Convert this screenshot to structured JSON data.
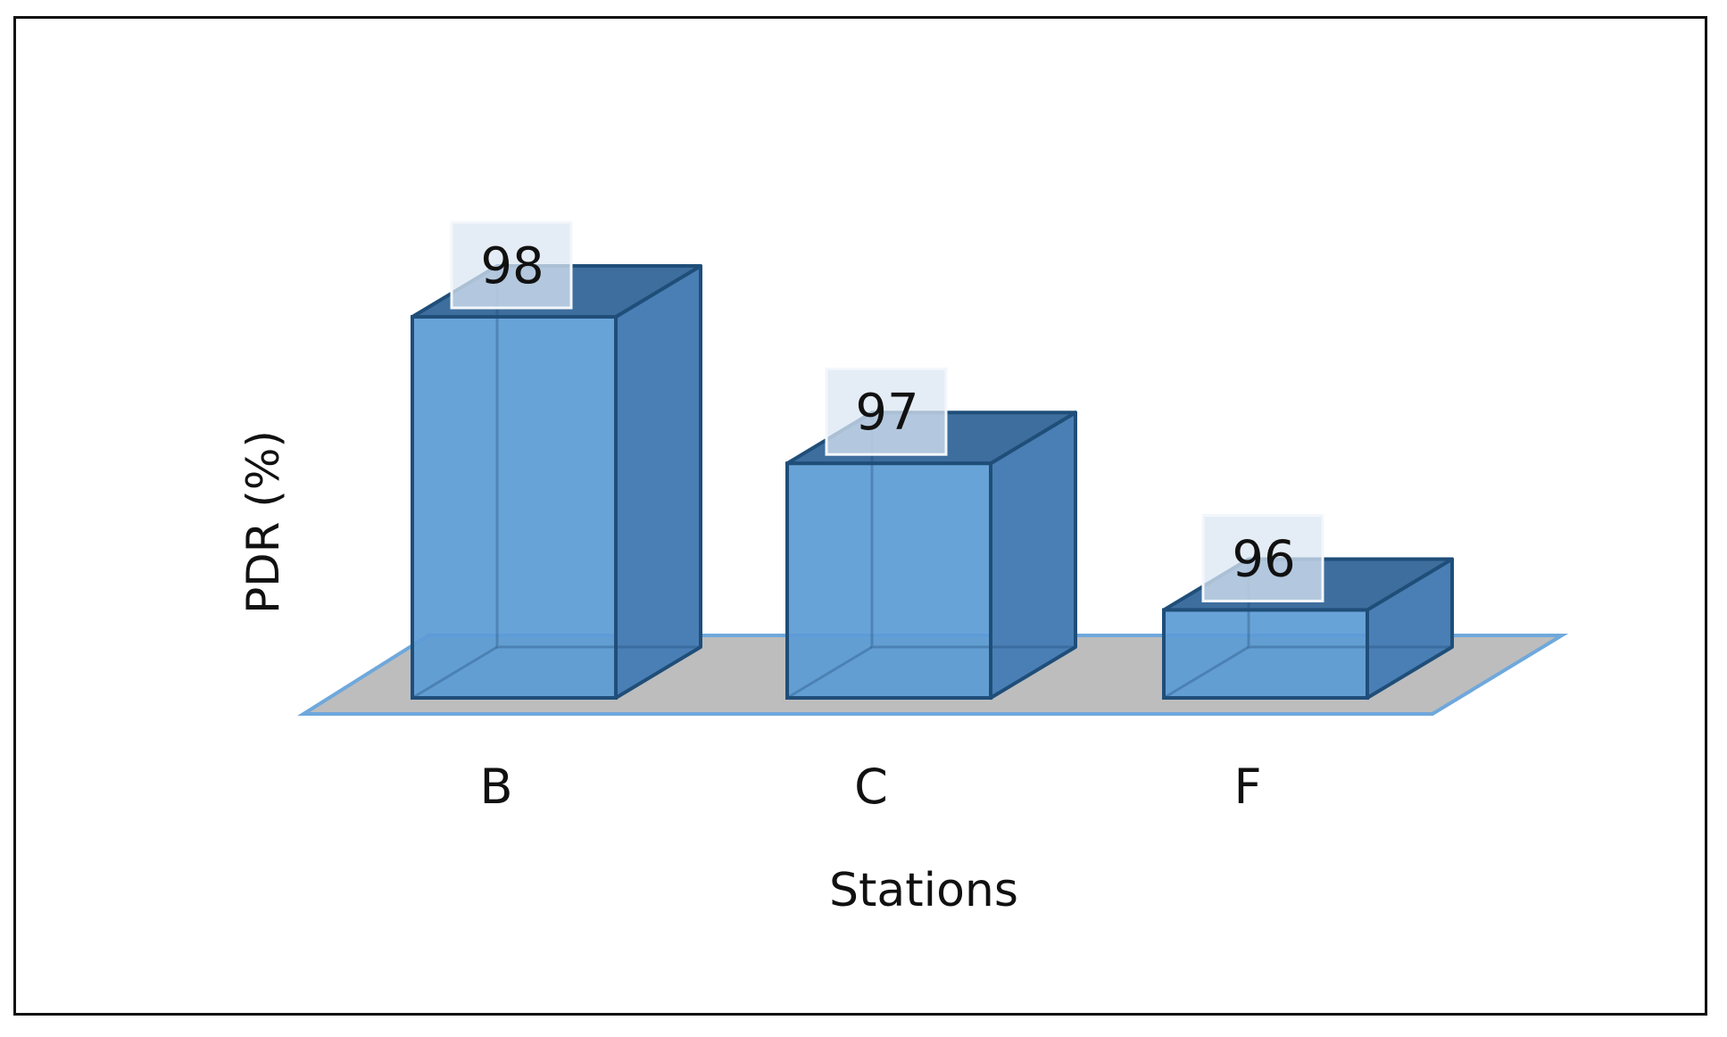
{
  "chart_data": {
    "type": "bar",
    "style": "3d",
    "categories": [
      "B",
      "C",
      "F"
    ],
    "values": [
      98,
      97,
      96
    ],
    "data_labels": [
      "98",
      "97",
      "96"
    ],
    "xlabel": "Stations",
    "ylabel": "PDR (%)",
    "ylim": [
      95.4,
      98
    ],
    "grid": false,
    "legend": "none",
    "colors": {
      "bar_front": "#5b9bd5",
      "bar_side": "#4a7fb5",
      "bar_top": "#3e6e9e",
      "bar_edge": "#1f4e79",
      "floor": "#bdbdbd",
      "floor_edge": "#6fa8dc",
      "label_box": "#dbe7f3"
    }
  }
}
